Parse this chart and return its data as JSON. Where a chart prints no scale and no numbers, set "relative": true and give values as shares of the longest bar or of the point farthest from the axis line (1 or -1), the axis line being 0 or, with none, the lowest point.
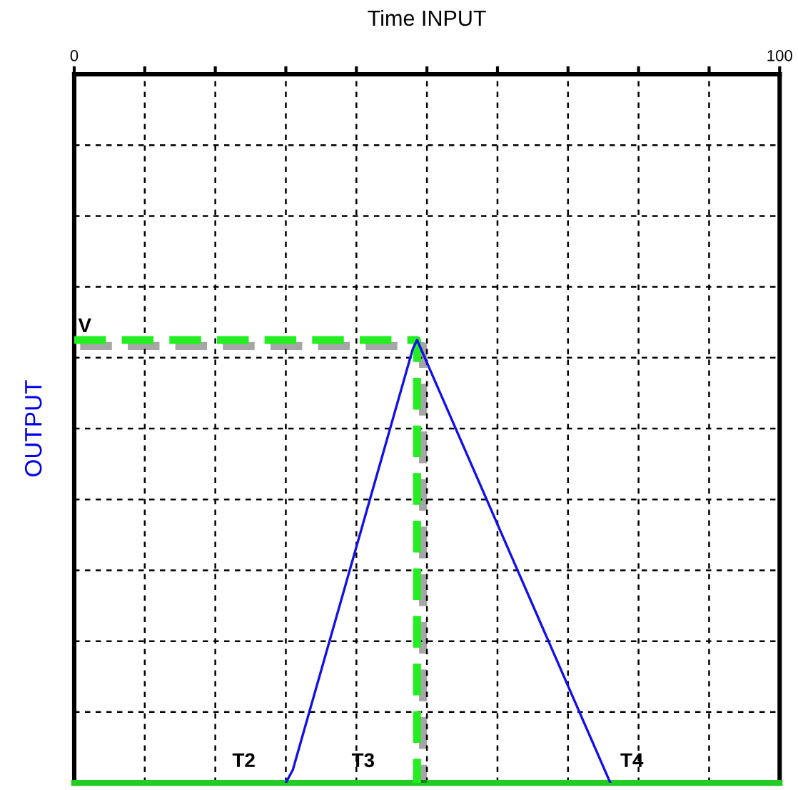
{
  "chart_data": {
    "type": "line",
    "xlabel": "Time INPUT",
    "ylabel": "OUTPUT",
    "relative": true,
    "xlim": [
      0,
      100
    ],
    "xticks": [
      0,
      {
        "value": 10,
        "label": null
      },
      {
        "value": 20,
        "label": null
      },
      {
        "value": 30,
        "label": null
      },
      {
        "value": 40,
        "label": null
      },
      {
        "value": 50,
        "label": null
      },
      {
        "value": 60,
        "label": null
      },
      {
        "value": 70,
        "label": null
      },
      {
        "value": 80,
        "label": null
      },
      {
        "value": 90,
        "label": null
      },
      100
    ],
    "tick_labels": "x",
    "grid": true,
    "marker": "none",
    "series": [
      {
        "color": "#1010e8",
        "line_style": "solid",
        "x": [
          30,
          31,
          48,
          48.6,
          76
        ],
        "values": [
          0,
          0.03,
          0.98,
          1,
          0
        ]
      },
      {
        "color": "#22ee22",
        "line_style": "dashed",
        "x": [
          0,
          48.6,
          48.6
        ],
        "values": [
          1,
          1,
          0
        ]
      }
    ],
    "ref_lines": [
      {
        "axis": "y",
        "value": 0,
        "color": "#22cc22",
        "line_style": "solid"
      }
    ],
    "annotations": [
      {
        "text": "V",
        "x": 0,
        "y": 1
      },
      {
        "text": "T2",
        "x": 30,
        "y": 0
      },
      {
        "text": "T3",
        "x": 48.6,
        "y": 0
      },
      {
        "text": "T4",
        "x": 76,
        "y": 0
      }
    ]
  }
}
